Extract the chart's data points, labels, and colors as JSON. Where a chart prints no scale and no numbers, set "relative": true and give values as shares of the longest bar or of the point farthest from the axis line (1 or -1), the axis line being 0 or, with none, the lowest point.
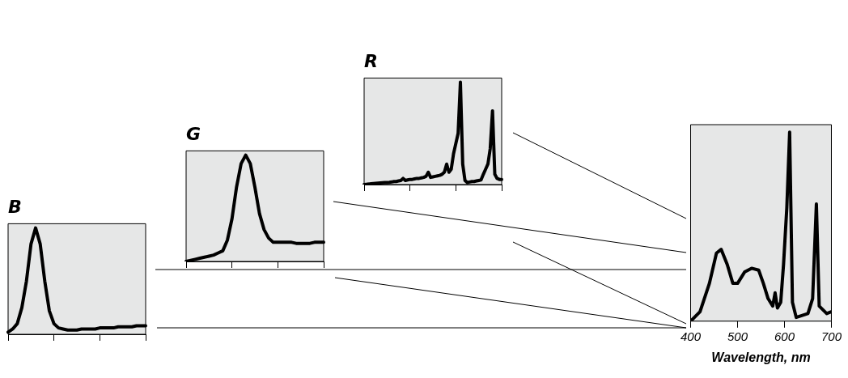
{
  "chart_data": [
    {
      "type": "line",
      "title": "B",
      "relative": true,
      "tick_labels": false,
      "grid": false,
      "categories": [
        null,
        null,
        null,
        null,
        null,
        null,
        null,
        null,
        null,
        null,
        null,
        null,
        null,
        null,
        null,
        null,
        null,
        null,
        null,
        null,
        null,
        null,
        null,
        null,
        null,
        null,
        null,
        null,
        null,
        null,
        null
      ],
      "series": [
        {
          "color": "#000000",
          "values": [
            0.02,
            0.05,
            0.1,
            0.25,
            0.5,
            0.85,
            1,
            0.85,
            0.5,
            0.22,
            0.1,
            0.06,
            0.05,
            0.04,
            0.04,
            0.04,
            0.05,
            0.05,
            0.05,
            0.05,
            0.06,
            0.06,
            0.06,
            0.06,
            0.07,
            0.07,
            0.07,
            0.07,
            0.08,
            0.08,
            0.08
          ]
        }
      ]
    },
    {
      "type": "line",
      "title": "G",
      "relative": true,
      "tick_labels": false,
      "grid": false,
      "categories": [
        null,
        null,
        null,
        null,
        null,
        null,
        null,
        null,
        null,
        null,
        null,
        null,
        null,
        null,
        null,
        null,
        null,
        null,
        null,
        null,
        null,
        null,
        null,
        null,
        null,
        null,
        null,
        null,
        null,
        null,
        null
      ],
      "series": [
        {
          "color": "#000000",
          "values": [
            0,
            0.01,
            0.02,
            0.03,
            0.04,
            0.05,
            0.06,
            0.08,
            0.1,
            0.2,
            0.4,
            0.7,
            0.92,
            1,
            0.92,
            0.7,
            0.45,
            0.3,
            0.22,
            0.18,
            0.18,
            0.18,
            0.18,
            0.18,
            0.17,
            0.17,
            0.17,
            0.17,
            0.18,
            0.18,
            0.18
          ]
        }
      ]
    },
    {
      "type": "line",
      "title": "R",
      "relative": true,
      "tick_labels": false,
      "grid": false,
      "categories": [
        null,
        null,
        null,
        null,
        null,
        null,
        null,
        null,
        null,
        null,
        null,
        null,
        null,
        null,
        null,
        null,
        null,
        null,
        null,
        null,
        null,
        null,
        null,
        null,
        null,
        null,
        null,
        null,
        null,
        null,
        null,
        null,
        null,
        null,
        null,
        null,
        null,
        null,
        null,
        null,
        null,
        null,
        null,
        null,
        null,
        null,
        null,
        null,
        null,
        null,
        null,
        null,
        null,
        null,
        null,
        null,
        null,
        null,
        null,
        null,
        null
      ],
      "series": [
        {
          "color": "#000000",
          "values": [
            0,
            0.003,
            0.005,
            0.008,
            0.01,
            0.012,
            0.014,
            0.016,
            0.018,
            0.02,
            0.02,
            0.022,
            0.025,
            0.03,
            0.03,
            0.035,
            0.04,
            0.06,
            0.04,
            0.045,
            0.05,
            0.05,
            0.055,
            0.06,
            0.06,
            0.065,
            0.07,
            0.08,
            0.12,
            0.07,
            0.075,
            0.08,
            0.085,
            0.09,
            0.1,
            0.12,
            0.2,
            0.12,
            0.15,
            0.3,
            0.4,
            0.5,
            1,
            0.2,
            0.04,
            0.02,
            0.025,
            0.03,
            0.03,
            0.035,
            0.04,
            0.045,
            0.1,
            0.15,
            0.2,
            0.35,
            0.72,
            0.1,
            0.06,
            0.05,
            0.05
          ]
        }
      ]
    },
    {
      "type": "line",
      "xlabel": "Wavelength, nm",
      "relative": true,
      "xlim": [
        400,
        700
      ],
      "xticks": [
        400,
        500,
        600,
        700
      ],
      "tick_labels": "x",
      "grid": false,
      "x": [
        400,
        420,
        440,
        455,
        465,
        478,
        490,
        500,
        515,
        530,
        545,
        555,
        565,
        575,
        580,
        585,
        592,
        598,
        605,
        611,
        617,
        625,
        650,
        660,
        668,
        674,
        690,
        700
      ],
      "series": [
        {
          "color": "#000000",
          "values": [
            0,
            0.05,
            0.2,
            0.36,
            0.38,
            0.3,
            0.2,
            0.2,
            0.26,
            0.28,
            0.27,
            0.2,
            0.12,
            0.08,
            0.15,
            0.07,
            0.1,
            0.3,
            0.6,
            1,
            0.1,
            0.02,
            0.04,
            0.12,
            0.62,
            0.08,
            0.04,
            0.05
          ]
        }
      ]
    }
  ]
}
